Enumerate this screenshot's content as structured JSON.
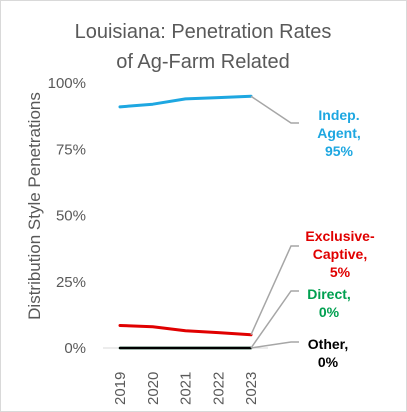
{
  "chart_data": {
    "type": "line",
    "title_lines": [
      "Louisiana: Penetration Rates",
      "of Ag-Farm Related"
    ],
    "ylabel": "Distribution Style Penetrations",
    "xlabel": "",
    "categories": [
      "2019",
      "2020",
      "2021",
      "2022",
      "2023"
    ],
    "ylim": [
      0,
      100
    ],
    "yticks": [
      {
        "value": 0,
        "label": "0%"
      },
      {
        "value": 25,
        "label": "25%"
      },
      {
        "value": 50,
        "label": "50%"
      },
      {
        "value": 75,
        "label": "75%"
      },
      {
        "value": 100,
        "label": "100%"
      }
    ],
    "grid": false,
    "series": [
      {
        "name": "Indep. Agent",
        "label_lines": [
          "Indep.",
          "Agent,",
          "95%"
        ],
        "color": "#1EA7E1",
        "values": [
          91,
          92,
          94,
          94.5,
          95
        ]
      },
      {
        "name": "Exclusive-Captive",
        "label_lines": [
          "Exclusive-",
          "Captive,",
          "5%"
        ],
        "color": "#E00000",
        "values": [
          8.5,
          8,
          6.5,
          5.8,
          5
        ]
      },
      {
        "name": "Direct",
        "label_lines": [
          "Direct,",
          "0%"
        ],
        "color": "#00A050",
        "values": [
          0,
          0,
          0,
          0,
          0
        ]
      },
      {
        "name": "Other",
        "label_lines": [
          "Other,",
          "0%"
        ],
        "color": "#000000",
        "values": [
          0,
          0,
          0,
          0,
          0
        ]
      }
    ]
  }
}
